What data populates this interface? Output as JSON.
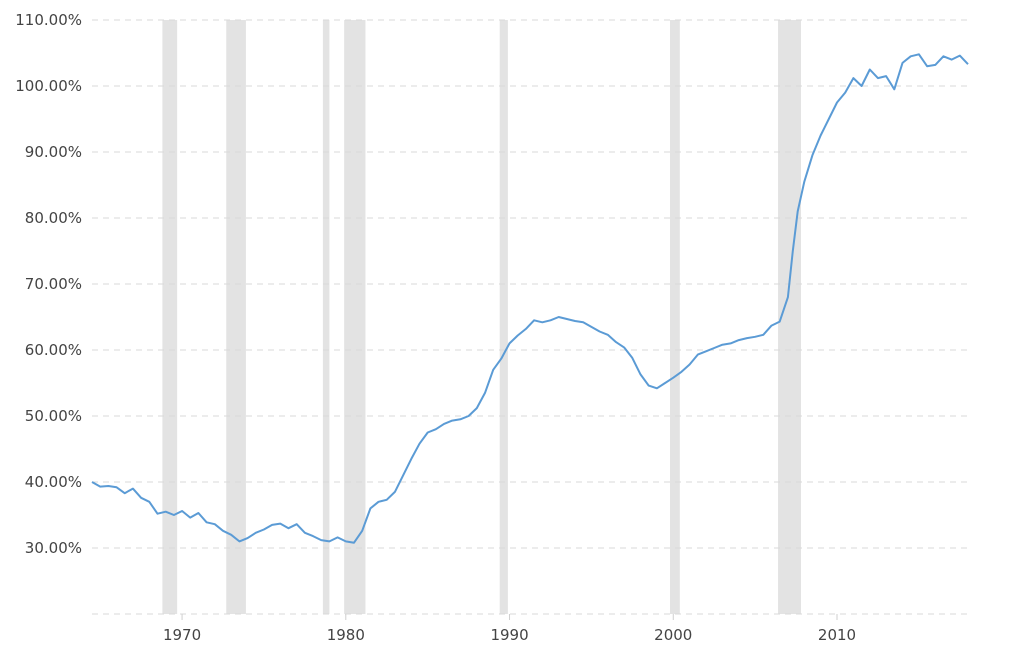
{
  "chart_data": {
    "type": "line",
    "title": "",
    "xlabel": "",
    "ylabel": "",
    "xlim": [
      1964.5,
      2018.0
    ],
    "ylim": [
      20,
      110
    ],
    "grid": true,
    "y_ticks": [
      {
        "value": 30,
        "label": "30.00%"
      },
      {
        "value": 40,
        "label": "40.00%"
      },
      {
        "value": 50,
        "label": "50.00%"
      },
      {
        "value": 60,
        "label": "60.00%"
      },
      {
        "value": 70,
        "label": "70.00%"
      },
      {
        "value": 80,
        "label": "80.00%"
      },
      {
        "value": 90,
        "label": "90.00%"
      },
      {
        "value": 100,
        "label": "100.00%"
      },
      {
        "value": 110,
        "label": "110.00%"
      }
    ],
    "x_ticks": [
      {
        "value": 1970,
        "label": "1970"
      },
      {
        "value": 1980,
        "label": "1980"
      },
      {
        "value": 1990,
        "label": "1990"
      },
      {
        "value": 2000,
        "label": "2000"
      },
      {
        "value": 2010,
        "label": "2010"
      }
    ],
    "recessions": [
      [
        1968.8,
        1969.7
      ],
      [
        1972.7,
        1973.9
      ],
      [
        1978.6,
        1979.0
      ],
      [
        1979.9,
        1981.2
      ],
      [
        1989.4,
        1989.9
      ],
      [
        1999.8,
        2000.4
      ],
      [
        2006.4,
        2007.8
      ]
    ],
    "series": [
      {
        "x": [
          1964.5,
          1965.0,
          1965.5,
          1966.0,
          1966.5,
          1967.0,
          1967.5,
          1968.0,
          1968.5,
          1969.0,
          1969.5,
          1970.0,
          1970.5,
          1971.0,
          1971.5,
          1972.0,
          1972.5,
          1973.0,
          1973.5,
          1974.0,
          1974.5,
          1975.0,
          1975.5,
          1976.0,
          1976.5,
          1977.0,
          1977.5,
          1978.0,
          1978.5,
          1979.0,
          1979.5,
          1980.0,
          1980.5,
          1981.0,
          1981.5,
          1982.0,
          1982.5,
          1983.0,
          1983.5,
          1984.0,
          1984.5,
          1985.0,
          1985.5,
          1986.0,
          1986.5,
          1987.0,
          1987.5,
          1988.0,
          1988.5,
          1989.0,
          1989.5,
          1990.0,
          1990.5,
          1991.0,
          1991.5,
          1992.0,
          1992.5,
          1993.0,
          1993.5,
          1994.0,
          1994.5,
          1995.0,
          1995.5,
          1996.0,
          1996.5,
          1997.0,
          1997.5,
          1998.0,
          1998.5,
          1999.0,
          1999.5,
          2000.0,
          2000.5,
          2001.0,
          2001.5,
          2002.0,
          2002.5,
          2003.0,
          2003.5,
          2004.0,
          2004.5,
          2005.0,
          2005.5,
          2006.0,
          2006.5,
          2007.0,
          2007.3,
          2007.6,
          2008.0,
          2008.5,
          2009.0,
          2009.5,
          2010.0,
          2010.5,
          2011.0,
          2011.5,
          2012.0,
          2012.5,
          2013.0,
          2013.5,
          2014.0,
          2014.5,
          2015.0,
          2015.5,
          2016.0,
          2016.5,
          2017.0,
          2017.5,
          2018.0
        ],
        "values": [
          40.0,
          39.3,
          39.4,
          39.2,
          38.3,
          39.0,
          37.6,
          37.0,
          35.2,
          35.5,
          35.0,
          35.6,
          34.6,
          35.3,
          33.9,
          33.6,
          32.6,
          32.0,
          31.0,
          31.5,
          32.3,
          32.8,
          33.5,
          33.7,
          33.0,
          33.6,
          32.3,
          31.8,
          31.2,
          31.0,
          31.6,
          31.0,
          30.8,
          32.6,
          36.0,
          37.0,
          37.3,
          38.5,
          41.0,
          43.5,
          45.8,
          47.5,
          48.0,
          48.8,
          49.3,
          49.5,
          50.0,
          51.2,
          53.5,
          57.0,
          58.7,
          61.0,
          62.2,
          63.2,
          64.5,
          64.2,
          64.5,
          65.0,
          64.7,
          64.4,
          64.2,
          63.5,
          62.8,
          62.3,
          61.2,
          60.4,
          58.8,
          56.3,
          54.6,
          54.2,
          55.0,
          55.8,
          56.7,
          57.8,
          59.3,
          59.8,
          60.3,
          60.8,
          61.0,
          61.5,
          61.8,
          62.0,
          62.3,
          63.7,
          64.3,
          68.0,
          75.0,
          81.0,
          85.5,
          89.5,
          92.5,
          95.0,
          97.5,
          99.0,
          101.2,
          100.0,
          102.5,
          101.2,
          101.5,
          99.5,
          103.5,
          104.5,
          104.8,
          103.0,
          103.2,
          104.5,
          104.0,
          104.6,
          103.3
        ]
      }
    ]
  }
}
